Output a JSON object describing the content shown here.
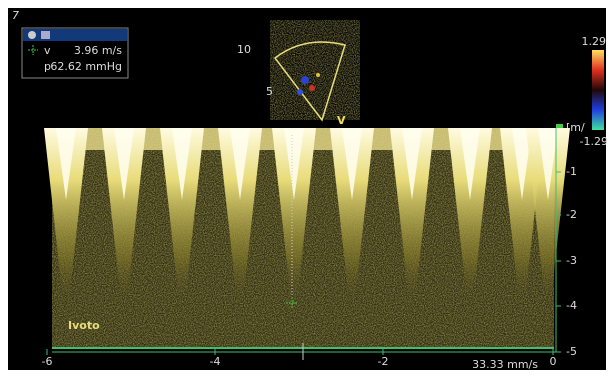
{
  "screen": {
    "corner_label": "7",
    "measure": {
      "v_label": "v",
      "v_value": "3.96 m/s",
      "p_label": "p",
      "p_value": "62.62 mmHg"
    },
    "sector": {
      "depth_top": "10",
      "depth_mid": "5",
      "marker": "V"
    },
    "color_scale": {
      "top": "1.29",
      "bottom": "-1.29",
      "unit": "[m/"
    },
    "spectrum": {
      "right_ticks": [
        "-1",
        "-2",
        "-3",
        "-4",
        "-5"
      ],
      "bottom_ticks": [
        "-6",
        "-4",
        "-2",
        "0"
      ],
      "sweep": "33.33 mm/s",
      "annotation": "Ivoto"
    }
  }
}
